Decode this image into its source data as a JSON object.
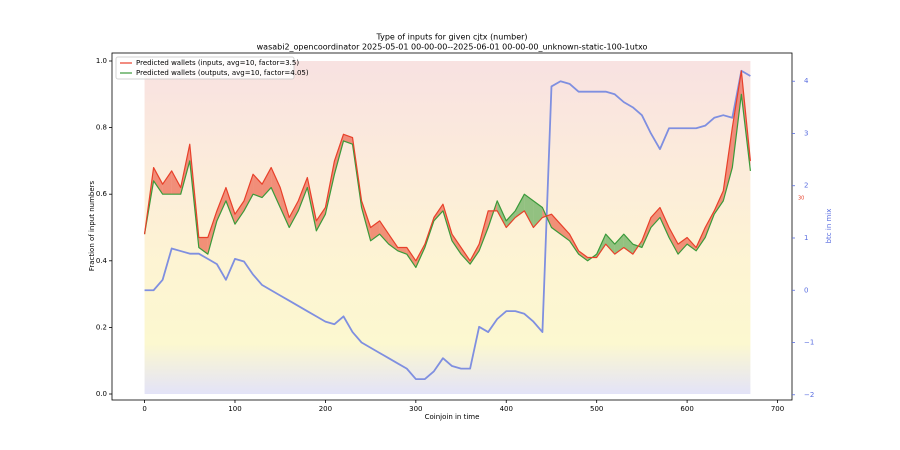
{
  "chart_data": {
    "type": "line",
    "title": "Type of inputs for given cjtx (number)",
    "subtitle": "wasabi2_opencoordinator 2025-05-01 00-00-00--2025-06-01 00-00-00_unknown-static-100-1utxo",
    "x_label": "Coinjoin in time",
    "y_label": "Fraction of input numbers",
    "y2_label": "btc in mix",
    "annotation": "30",
    "legend": "upper left",
    "x": [
      0,
      10,
      20,
      30,
      40,
      50,
      60,
      70,
      80,
      90,
      100,
      110,
      120,
      130,
      140,
      150,
      160,
      170,
      180,
      190,
      200,
      210,
      220,
      230,
      240,
      250,
      260,
      270,
      280,
      290,
      300,
      310,
      320,
      330,
      340,
      350,
      360,
      370,
      380,
      390,
      400,
      410,
      420,
      430,
      440,
      450,
      460,
      470,
      480,
      490,
      500,
      510,
      520,
      530,
      540,
      550,
      560,
      570,
      580,
      590,
      600,
      610,
      620,
      630,
      640,
      650,
      660,
      670
    ],
    "series": [
      {
        "name": "Predicted wallets (inputs, avg=10, factor=3.5)",
        "color": "#e8402a",
        "values": [
          0.48,
          0.68,
          0.63,
          0.67,
          0.62,
          0.75,
          0.47,
          0.47,
          0.55,
          0.62,
          0.54,
          0.58,
          0.66,
          0.63,
          0.68,
          0.62,
          0.53,
          0.58,
          0.65,
          0.52,
          0.56,
          0.7,
          0.78,
          0.77,
          0.58,
          0.5,
          0.52,
          0.48,
          0.44,
          0.44,
          0.4,
          0.45,
          0.53,
          0.57,
          0.48,
          0.44,
          0.4,
          0.45,
          0.55,
          0.55,
          0.5,
          0.53,
          0.55,
          0.5,
          0.53,
          0.54,
          0.51,
          0.48,
          0.43,
          0.41,
          0.41,
          0.45,
          0.42,
          0.44,
          0.42,
          0.46,
          0.53,
          0.56,
          0.5,
          0.45,
          0.47,
          0.44,
          0.5,
          0.55,
          0.61,
          0.8,
          0.97,
          0.7
        ]
      },
      {
        "name": "Predicted wallets (outputs, avg=10, factor=4.05)",
        "color": "#3a9a3a",
        "values": [
          0.48,
          0.64,
          0.6,
          0.6,
          0.6,
          0.7,
          0.44,
          0.42,
          0.52,
          0.58,
          0.51,
          0.55,
          0.6,
          0.59,
          0.62,
          0.56,
          0.5,
          0.55,
          0.62,
          0.49,
          0.54,
          0.66,
          0.76,
          0.75,
          0.56,
          0.46,
          0.48,
          0.45,
          0.43,
          0.42,
          0.38,
          0.44,
          0.52,
          0.55,
          0.46,
          0.42,
          0.39,
          0.43,
          0.5,
          0.58,
          0.52,
          0.55,
          0.6,
          0.58,
          0.56,
          0.5,
          0.48,
          0.46,
          0.42,
          0.4,
          0.42,
          0.48,
          0.45,
          0.48,
          0.45,
          0.44,
          0.5,
          0.53,
          0.47,
          0.42,
          0.45,
          0.43,
          0.47,
          0.54,
          0.58,
          0.68,
          0.9,
          0.67
        ]
      },
      {
        "name": "btc in mix",
        "color": "#7f8fe0",
        "axis": "y2",
        "values": [
          0,
          0,
          0.2,
          0.8,
          0.75,
          0.7,
          0.7,
          0.6,
          0.5,
          0.2,
          0.6,
          0.55,
          0.3,
          0.1,
          0,
          -0.1,
          -0.2,
          -0.3,
          -0.4,
          -0.5,
          -0.6,
          -0.65,
          -0.5,
          -0.8,
          -1.0,
          -1.1,
          -1.2,
          -1.3,
          -1.4,
          -1.5,
          -1.7,
          -1.7,
          -1.55,
          -1.3,
          -1.45,
          -1.5,
          -1.5,
          -0.7,
          -0.8,
          -0.55,
          -0.4,
          -0.4,
          -0.45,
          -0.6,
          -0.8,
          3.9,
          4.0,
          3.95,
          3.8,
          3.8,
          3.8,
          3.8,
          3.75,
          3.6,
          3.5,
          3.35,
          3.0,
          2.7,
          3.1,
          3.1,
          3.1,
          3.1,
          3.15,
          3.3,
          3.35,
          3.3,
          4.2,
          4.1
        ]
      }
    ],
    "xlim": [
      -36,
      716
    ],
    "xticks": [
      0,
      100,
      200,
      300,
      400,
      500,
      600,
      700
    ],
    "ylim": [
      -0.018,
      1.024
    ],
    "yticks": [
      {
        "value": 0,
        "label": "0.0"
      },
      {
        "value": 0.2,
        "label": "0.2"
      },
      {
        "value": 0.4,
        "label": "0.4"
      },
      {
        "value": 0.6,
        "label": "0.6"
      },
      {
        "value": 0.8,
        "label": "0.8"
      },
      {
        "value": 1,
        "label": "1.0"
      }
    ],
    "y2lim": [
      -2.1,
      4.54
    ],
    "y2ticks": [
      {
        "value": -2,
        "label": "−2"
      },
      {
        "value": -1,
        "label": "−1"
      },
      0,
      1,
      2,
      3,
      4
    ]
  }
}
